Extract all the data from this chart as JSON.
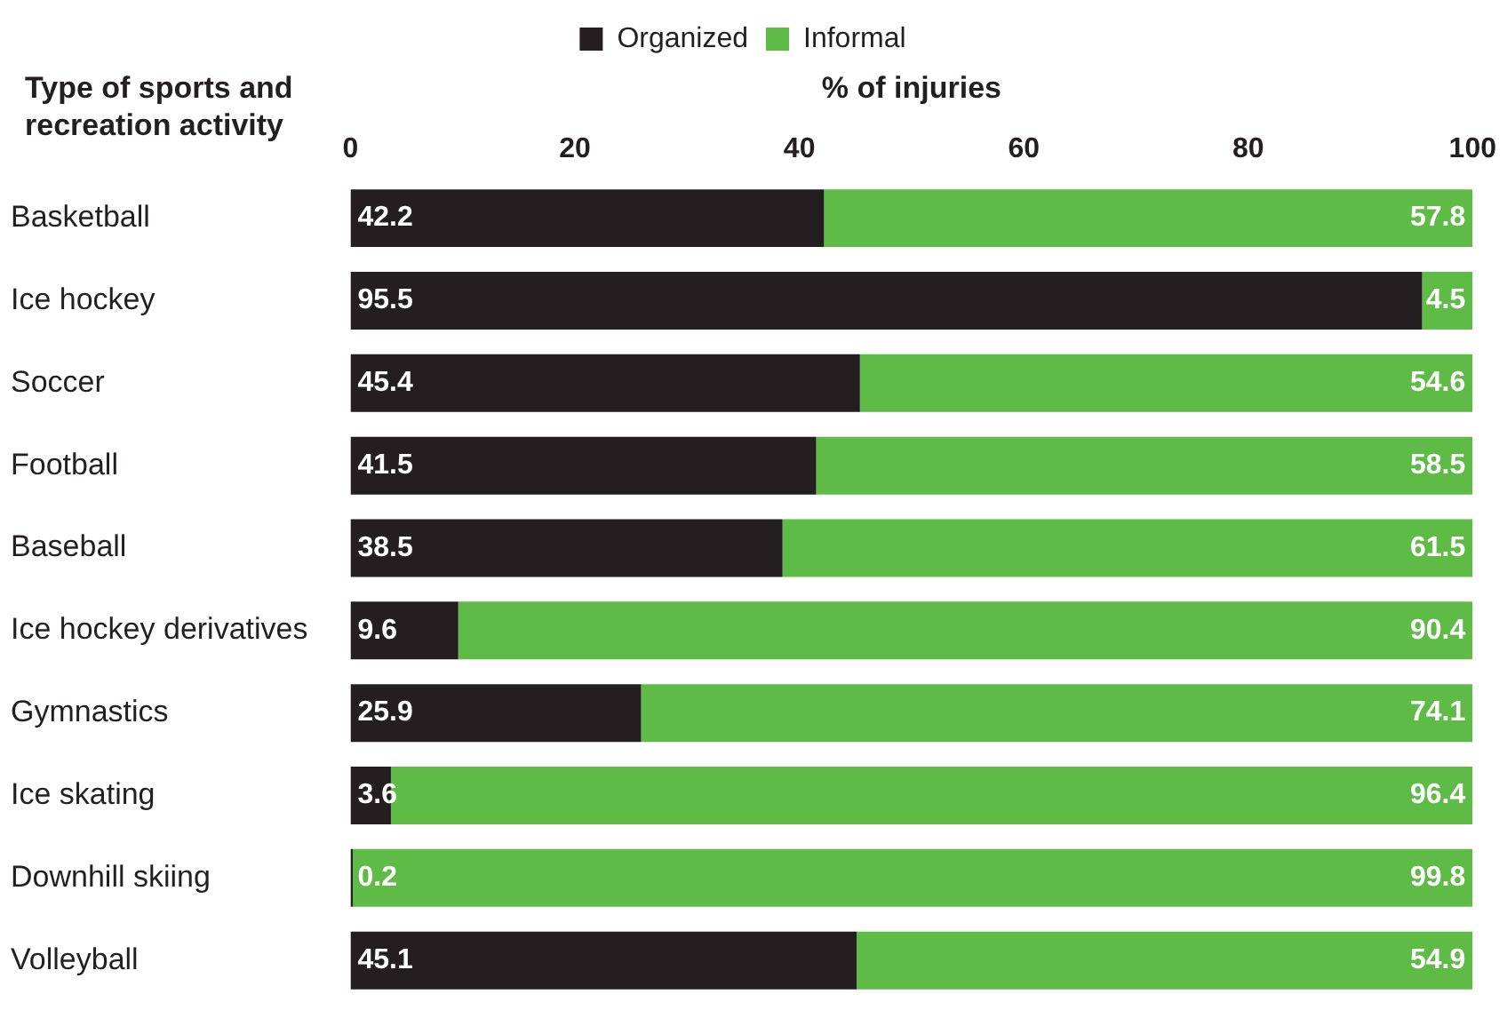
{
  "chart_data": {
    "type": "bar",
    "orientation": "horizontal",
    "stacked": true,
    "xlabel": "% of injuries",
    "ylabel": "Type of sports and recreation activity",
    "categories": [
      "Basketball",
      "Ice hockey",
      "Soccer",
      "Football",
      "Baseball",
      "Ice hockey derivatives",
      "Gymnastics",
      "Ice skating",
      "Downhill skiing",
      "Volleyball"
    ],
    "series": [
      {
        "name": "Organized",
        "color": "#231f20",
        "values": [
          42.2,
          95.5,
          45.4,
          41.5,
          38.5,
          9.6,
          25.9,
          3.6,
          0.2,
          45.1
        ]
      },
      {
        "name": "Informal",
        "color": "#5dbb46",
        "values": [
          57.8,
          4.5,
          54.6,
          58.5,
          61.5,
          90.4,
          74.1,
          96.4,
          99.8,
          54.9
        ]
      }
    ],
    "xlim": [
      0,
      100
    ],
    "xticks": [
      0,
      20,
      40,
      60,
      80,
      100
    ],
    "grid": false,
    "legend": "top",
    "data_labels": true
  }
}
